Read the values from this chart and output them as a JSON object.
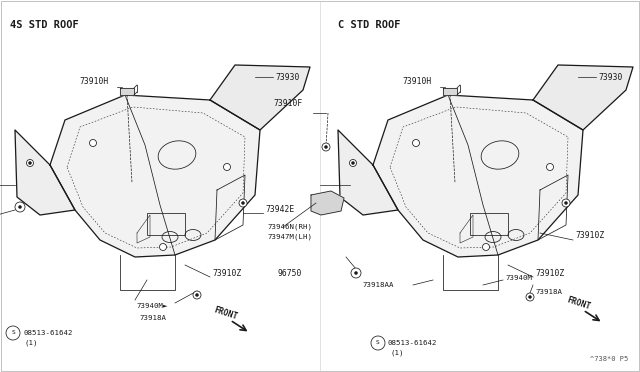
{
  "title_left": "4S STD ROOF",
  "title_right": "C STD ROOF",
  "bg_color": "#ffffff",
  "line_color": "#1a1a1a",
  "text_color": "#1a1a1a",
  "fig_width": 6.4,
  "fig_height": 3.72,
  "dpi": 100,
  "watermark": "^738*0 P5",
  "border_color": "#aaaaaa"
}
